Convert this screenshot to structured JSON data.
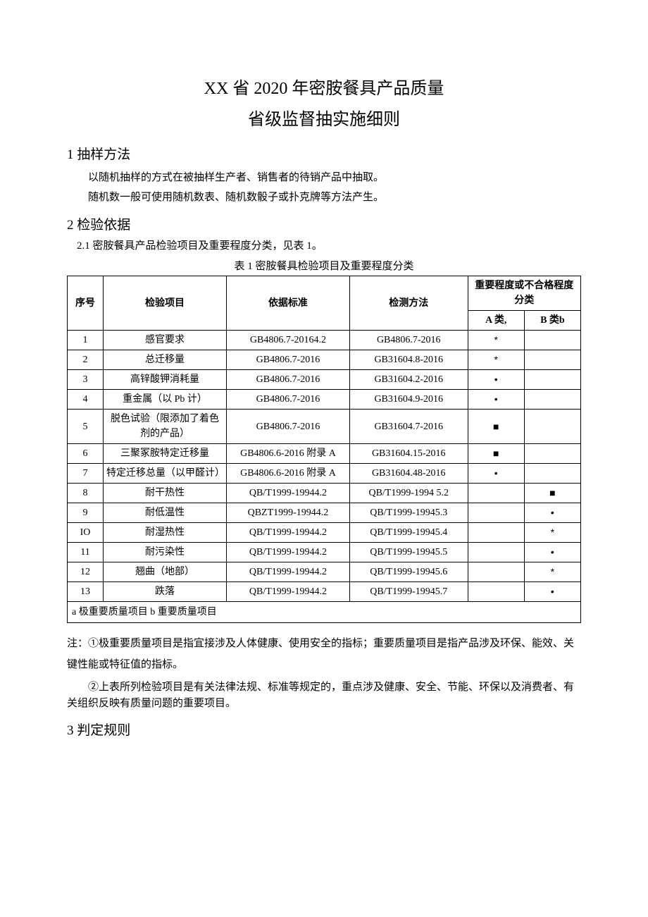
{
  "title_line1": "XX 省 2020 年密胺餐具产品质量",
  "title_line2": "省级监督抽实施细则",
  "section1_heading": "1 抽样方法",
  "section1_p1": "以随机抽样的方式在被抽样生产者、销售者的待销产品中抽取。",
  "section1_p2": "随机数一般可使用随机数表、随机数骰子或扑克牌等方法产生。",
  "section2_heading": "2 检验依据",
  "section2_sub": "2.1 密胺餐具产品检验项目及重要程度分类，见表 1。",
  "table_caption": "表 1 密胺餐具检验项目及重要程度分类",
  "headers": {
    "seq": "序号",
    "item": "检验项目",
    "basis": "依据标准",
    "method": "检测方法",
    "degree_group": "重要程度或不合格程度分类",
    "classA": "A 类,",
    "classB": "B 类b"
  },
  "rows": [
    {
      "seq": "1",
      "item": "感官要求",
      "basis": "GB4806.7-20164.2",
      "method": "GB4806.7-2016",
      "a": "*",
      "b": ""
    },
    {
      "seq": "2",
      "item": "总迁移量",
      "basis": "GB4806.7-2016",
      "method": "GB31604.8-2016",
      "a": "*",
      "b": ""
    },
    {
      "seq": "3",
      "item": "高锌酸钾消耗量",
      "basis": "GB4806.7-2016",
      "method": "GB31604.2-2016",
      "a": "•",
      "b": ""
    },
    {
      "seq": "4",
      "item": "重金属（以 Pb 计）",
      "basis": "GB4806.7-2016",
      "method": "GB31604.9-2016",
      "a": "•",
      "b": ""
    },
    {
      "seq": "5",
      "item": "脱色试验（限添加了着色剂的产品）",
      "basis": "GB4806.7-2016",
      "method": "GB31604.7-2016",
      "a": "■",
      "b": ""
    },
    {
      "seq": "6",
      "item": "三聚冢胺特定迁移量",
      "basis": "GB4806.6-2016 附录 A",
      "method": "GB31604.15-2016",
      "a": "■",
      "b": ""
    },
    {
      "seq": "7",
      "item": "特定迁移总量（以甲醛计）",
      "basis": "GB4806.6-2016 附录 A",
      "method": "GB31604.48-2016",
      "a": "•",
      "b": ""
    },
    {
      "seq": "8",
      "item": "耐干热性",
      "basis": "QB/T1999-19944.2",
      "method": "QB/T1999-1994 5.2",
      "a": "",
      "b": "■"
    },
    {
      "seq": "9",
      "item": "耐低温性",
      "basis": "QBZT1999-19944.2",
      "method": "QB/T1999-19945.3",
      "a": "",
      "b": "•"
    },
    {
      "seq": "IO",
      "item": "耐湿热性",
      "basis": "QB/T1999-19944.2",
      "method": "QB/T1999-19945.4",
      "a": "",
      "b": "*"
    },
    {
      "seq": "11",
      "item": "耐污染性",
      "basis": "QB/T1999-19944.2",
      "method": "QB/T1999-19945.5",
      "a": "",
      "b": "•"
    },
    {
      "seq": "12",
      "item": "翘曲（地部）",
      "basis": "QB/T1999-19944.2",
      "method": "QB/T1999-19945.6",
      "a": "",
      "b": "*"
    },
    {
      "seq": "13",
      "item": "跌落",
      "basis": "QB/T1999-19944.2",
      "method": "QB/T1999-19945.7",
      "a": "",
      "b": "•"
    }
  ],
  "table_footer": "a 极重要质量项目 b 重要质量项目",
  "note1": "注：①极重要质量项目是指宜接涉及人体健康、使用安全的指标；重要质量项目是指产品涉及环保、能效、关键性能或特征值的指标。",
  "note2": "②上表所列检验项目是有关法律法规、标准等规定的，重点涉及健康、安全、节能、环保以及消费者、有关组织反映有质量问题的重要项目。",
  "section3_heading": "3 判定规则",
  "col_widths": {
    "seq": "7%",
    "item": "24%",
    "basis": "24%",
    "method": "23%",
    "a": "11%",
    "b": "11%"
  }
}
